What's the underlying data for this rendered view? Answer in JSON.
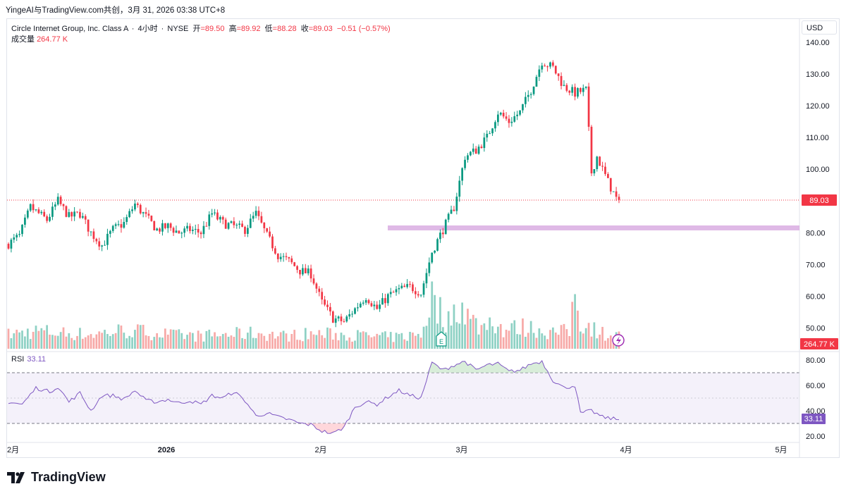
{
  "header": {
    "source_line": "YingeAI与TradingView.com共创，3月 31, 2026 03:38 UTC+8"
  },
  "legend": {
    "symbol": "Circle Internet Group, Inc. Class A",
    "interval": "4小时",
    "exchange": "NYSE",
    "open_label": "开",
    "open": "=89.50",
    "high_label": "高",
    "high": "=89.92",
    "low_label": "低",
    "low": "=88.28",
    "close_label": "收",
    "close": "=89.03",
    "change": "−0.51 (−0.57%)",
    "volume_label": "成交量",
    "volume": "264.77 K",
    "rsi_label": "RSI",
    "rsi_value": "33.11"
  },
  "toolbar": {
    "currency": "USD"
  },
  "brand": {
    "name": "TradingView"
  },
  "colors": {
    "up": "#089981",
    "down": "#f23645",
    "up_volume": "#8ed1c4",
    "down_volume": "#f7a9a7",
    "rsi": "#7e57c2",
    "zone": "#ce93d8"
  },
  "icons": {
    "earnings_marker": "E",
    "lightning": "lightning-icon"
  },
  "chart_data": [
    {
      "type": "candlestick",
      "currency": "USD",
      "y_ticks": [
        140,
        130,
        120,
        110,
        100,
        80,
        70,
        60,
        50
      ],
      "ylim": [
        45,
        142
      ],
      "x_ticks": [
        "2月",
        "2026",
        "2月",
        "3月",
        "4月",
        "5月"
      ],
      "last_price": "89.03",
      "volume_badge": "264.77 K",
      "horizontal_zone": [
        79.6,
        80.9
      ],
      "close_path": [
        [
          0,
          76.5
        ],
        [
          4,
          79
        ],
        [
          8,
          88
        ],
        [
          14,
          84
        ],
        [
          18,
          90
        ],
        [
          22,
          85
        ],
        [
          26,
          86
        ],
        [
          30,
          80
        ],
        [
          34,
          76
        ],
        [
          38,
          81
        ],
        [
          42,
          83
        ],
        [
          46,
          89
        ],
        [
          50,
          85
        ],
        [
          54,
          81
        ],
        [
          58,
          82
        ],
        [
          62,
          80
        ],
        [
          66,
          81
        ],
        [
          70,
          80
        ],
        [
          74,
          86
        ],
        [
          78,
          83
        ],
        [
          82,
          82
        ],
        [
          86,
          81
        ],
        [
          90,
          86
        ],
        [
          94,
          79
        ],
        [
          98,
          73
        ],
        [
          102,
          71
        ],
        [
          106,
          68
        ],
        [
          110,
          67
        ],
        [
          114,
          58
        ],
        [
          118,
          53
        ],
        [
          122,
          52
        ],
        [
          126,
          56
        ],
        [
          130,
          60
        ],
        [
          134,
          56
        ],
        [
          138,
          60
        ],
        [
          142,
          62
        ],
        [
          146,
          63
        ],
        [
          150,
          61
        ],
        [
          154,
          74
        ],
        [
          158,
          81
        ],
        [
          162,
          88
        ],
        [
          166,
          104
        ],
        [
          170,
          106
        ],
        [
          174,
          110
        ],
        [
          178,
          118
        ],
        [
          182,
          115
        ],
        [
          186,
          118
        ],
        [
          190,
          125
        ],
        [
          194,
          134
        ],
        [
          198,
          132
        ],
        [
          202,
          126
        ],
        [
          206,
          124
        ],
        [
          210,
          125
        ],
        [
          212,
          99
        ],
        [
          214,
          104
        ],
        [
          218,
          96
        ],
        [
          222,
          89
        ]
      ],
      "volume_path": [
        [
          0,
          20
        ],
        [
          10,
          25
        ],
        [
          20,
          22
        ],
        [
          30,
          20
        ],
        [
          40,
          25
        ],
        [
          50,
          24
        ],
        [
          60,
          19
        ],
        [
          70,
          18
        ],
        [
          80,
          20
        ],
        [
          90,
          22
        ],
        [
          100,
          18
        ],
        [
          110,
          21
        ],
        [
          120,
          20
        ],
        [
          130,
          18
        ],
        [
          140,
          16
        ],
        [
          150,
          20
        ],
        [
          154,
          72
        ],
        [
          156,
          56
        ],
        [
          160,
          38
        ],
        [
          164,
          66
        ],
        [
          168,
          40
        ],
        [
          172,
          30
        ],
        [
          176,
          42
        ],
        [
          180,
          26
        ],
        [
          186,
          30
        ],
        [
          192,
          28
        ],
        [
          196,
          24
        ],
        [
          200,
          22
        ],
        [
          204,
          26
        ],
        [
          206,
          82
        ],
        [
          208,
          38
        ],
        [
          212,
          30
        ],
        [
          216,
          22
        ],
        [
          222,
          18
        ]
      ],
      "volume_ylim": [
        0,
        100
      ]
    },
    {
      "type": "line",
      "name": "RSI",
      "last_value": "33.11",
      "y_ticks": [
        80,
        60,
        40,
        20
      ],
      "ylim": [
        17,
        84
      ],
      "bands": [
        70,
        50,
        30
      ],
      "values": [
        [
          0,
          47
        ],
        [
          5,
          45
        ],
        [
          10,
          58
        ],
        [
          15,
          55
        ],
        [
          18,
          59
        ],
        [
          22,
          47
        ],
        [
          26,
          54
        ],
        [
          30,
          40
        ],
        [
          34,
          52
        ],
        [
          38,
          52
        ],
        [
          42,
          49
        ],
        [
          46,
          56
        ],
        [
          50,
          48
        ],
        [
          54,
          47
        ],
        [
          58,
          49
        ],
        [
          62,
          46
        ],
        [
          66,
          48
        ],
        [
          70,
          45
        ],
        [
          74,
          52
        ],
        [
          78,
          50
        ],
        [
          82,
          55
        ],
        [
          86,
          48
        ],
        [
          90,
          36
        ],
        [
          94,
          38
        ],
        [
          98,
          35
        ],
        [
          102,
          33
        ],
        [
          106,
          30
        ],
        [
          110,
          29
        ],
        [
          114,
          24
        ],
        [
          118,
          22
        ],
        [
          122,
          27
        ],
        [
          126,
          43
        ],
        [
          130,
          47
        ],
        [
          134,
          45
        ],
        [
          138,
          51
        ],
        [
          142,
          56
        ],
        [
          146,
          52
        ],
        [
          150,
          50
        ],
        [
          154,
          78
        ],
        [
          158,
          72
        ],
        [
          162,
          76
        ],
        [
          166,
          79
        ],
        [
          170,
          72
        ],
        [
          174,
          76
        ],
        [
          178,
          77
        ],
        [
          182,
          71
        ],
        [
          186,
          72
        ],
        [
          190,
          77
        ],
        [
          194,
          79
        ],
        [
          198,
          64
        ],
        [
          202,
          58
        ],
        [
          206,
          60
        ],
        [
          208,
          38
        ],
        [
          212,
          40
        ],
        [
          216,
          35
        ],
        [
          222,
          33
        ]
      ]
    }
  ]
}
